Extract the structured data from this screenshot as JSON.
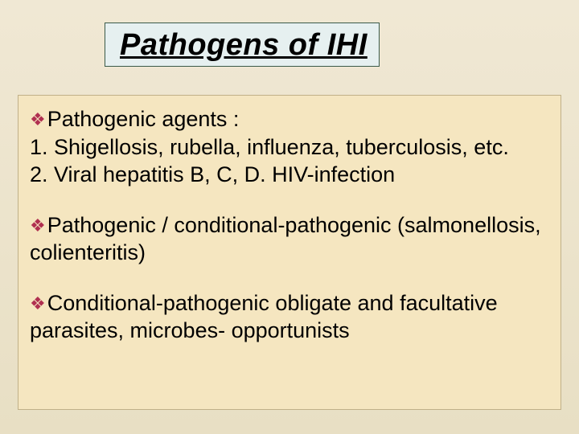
{
  "title": "Pathogens  of  IHI",
  "bullet_color": "#b03050",
  "title_box_bg": "#e6f0f0",
  "title_box_border": "#3a5a4a",
  "content_box_bg": "#f5e6c0",
  "content_box_border": "#c0b088",
  "sections": [
    {
      "lead": "Pathogenic agents :",
      "sub": [
        "1. Shigellosis, rubella, influenza, tuberculosis, etc.",
        "2. Viral hepatitis B, C, D. HIV-infection"
      ]
    },
    {
      "lead": "Pathogenic / conditional-pathogenic (salmonellosis, colienteritis)",
      "sub": []
    },
    {
      "lead": "Conditional-pathogenic obligate  and facultative  parasites, microbes- opportunists",
      "sub": []
    }
  ]
}
